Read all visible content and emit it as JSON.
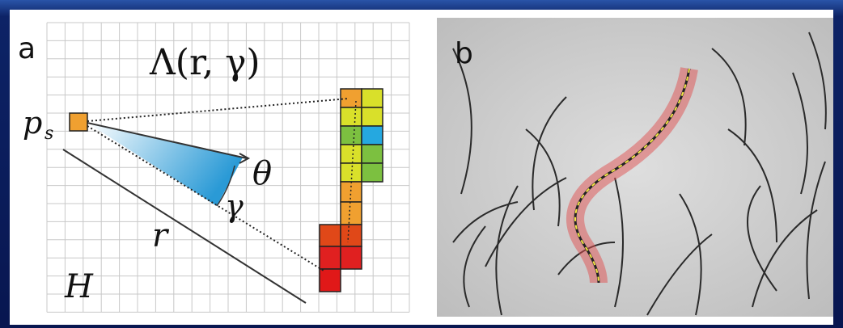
{
  "panel_a": {
    "label": "a",
    "title": "Λ(r, γ)",
    "point_label": "p",
    "point_subscript": "s",
    "angle_label": "θ",
    "width_label": "γ",
    "radius_label": "r",
    "histogram_label": "H"
  },
  "panel_b": {
    "label": "b"
  }
}
